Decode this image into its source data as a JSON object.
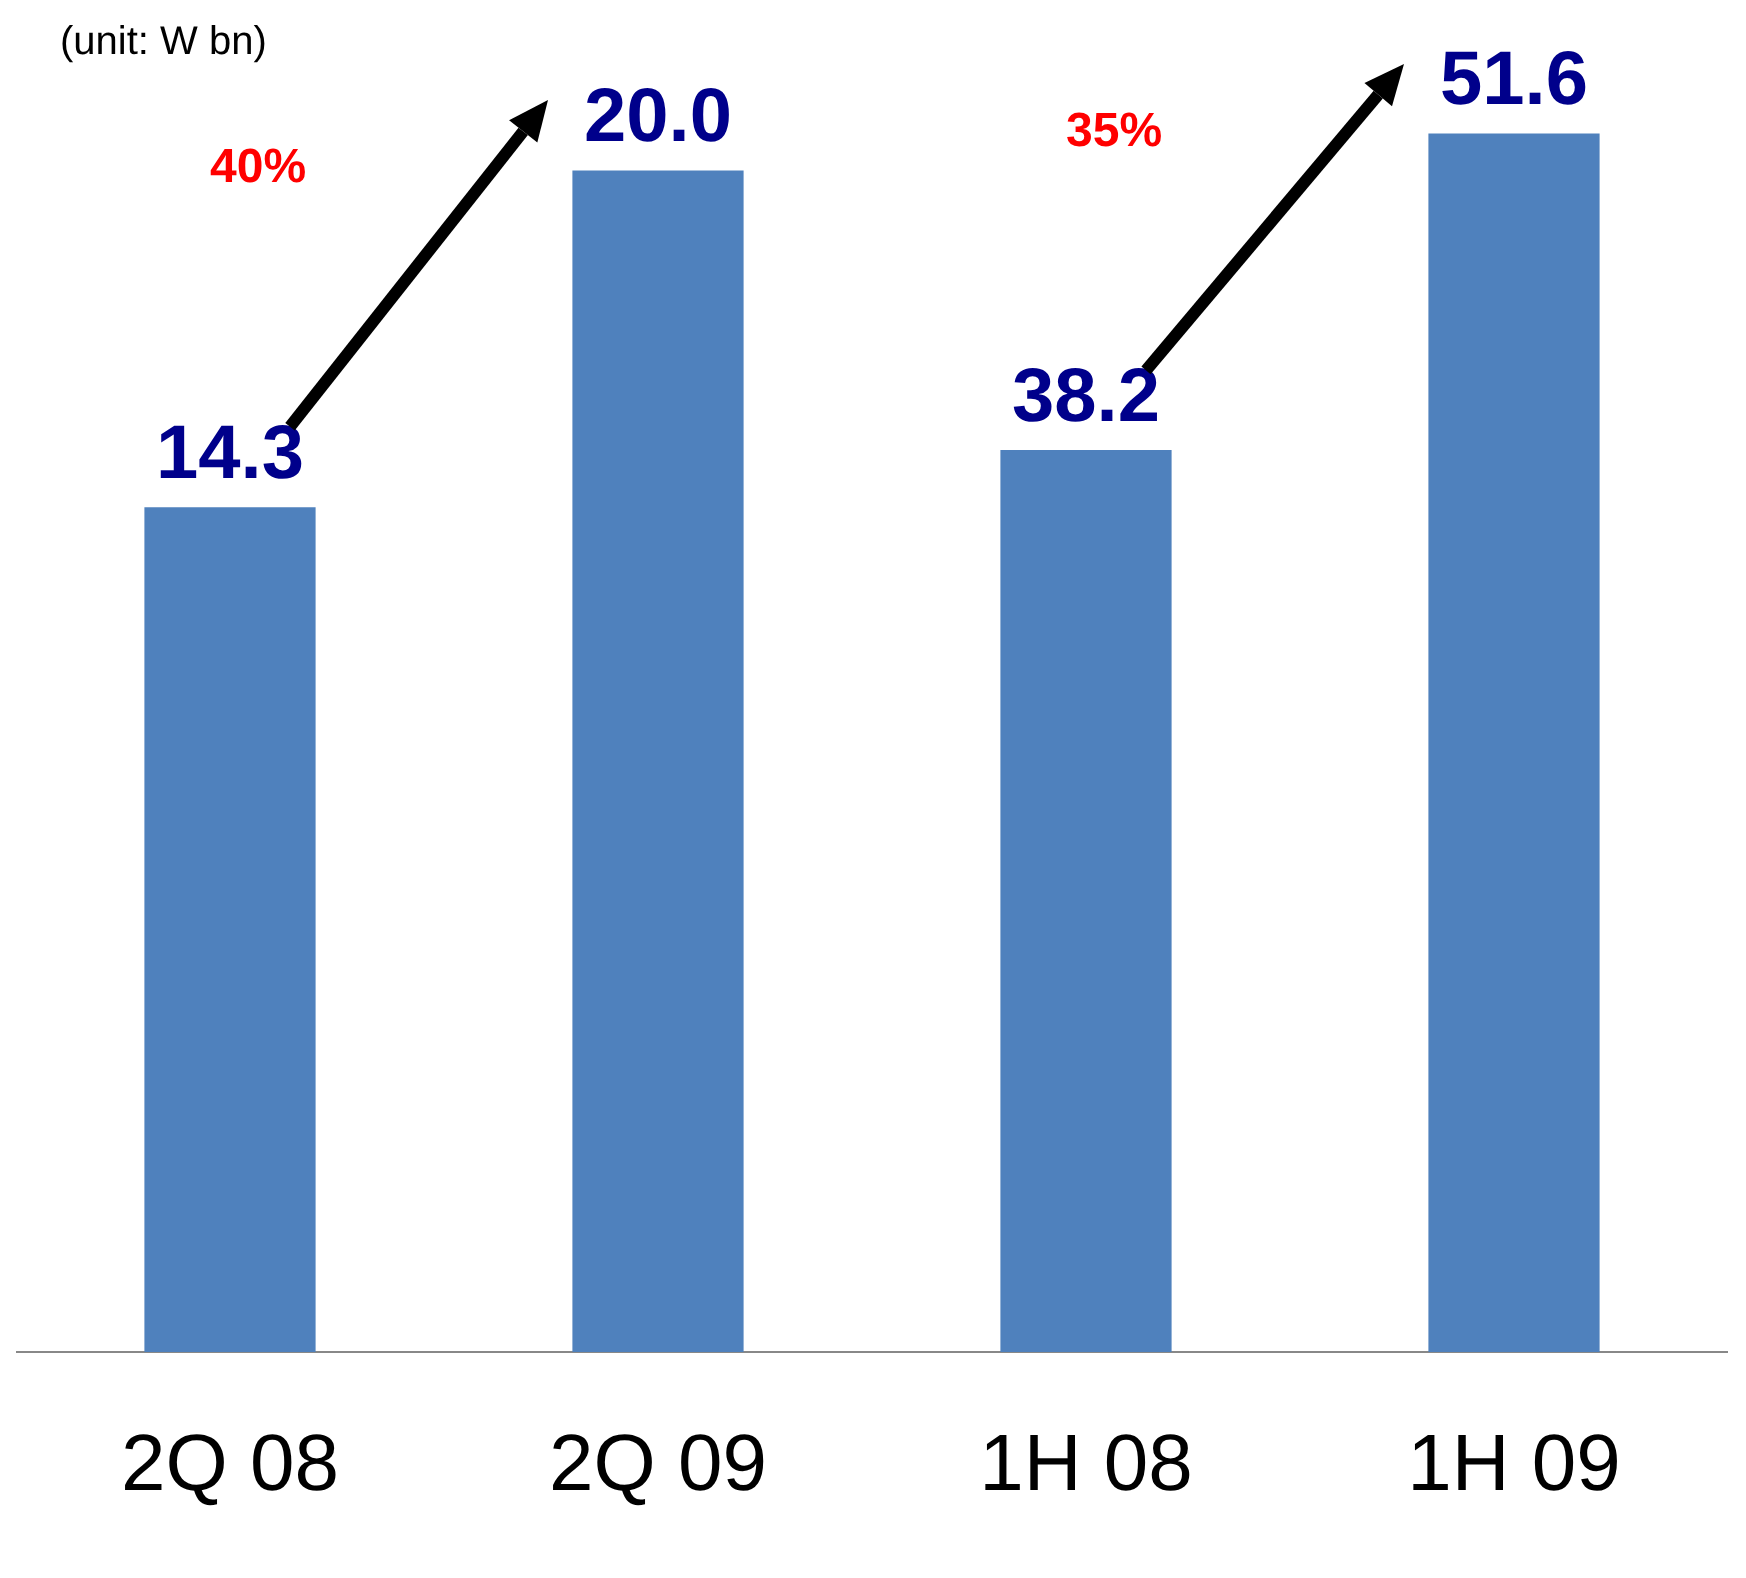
{
  "chart_data": [
    {
      "type": "bar",
      "categories": [
        "2Q 08",
        "2Q 09"
      ],
      "values": [
        14.3,
        20.0
      ],
      "value_labels": [
        "14.3",
        "20.0"
      ],
      "color": "#4f81bd",
      "grid": false,
      "legend": false,
      "tick_labels": "x",
      "annotations": [
        "(unit: W bn)",
        "40%"
      ]
    },
    {
      "type": "bar",
      "categories": [
        "1H 08",
        "1H 09"
      ],
      "values": [
        38.2,
        51.6
      ],
      "value_labels": [
        "38.2",
        "51.6"
      ],
      "color": "#4f81bd",
      "grid": false,
      "legend": false,
      "tick_labels": "x",
      "annotations": [
        "35%"
      ]
    }
  ]
}
